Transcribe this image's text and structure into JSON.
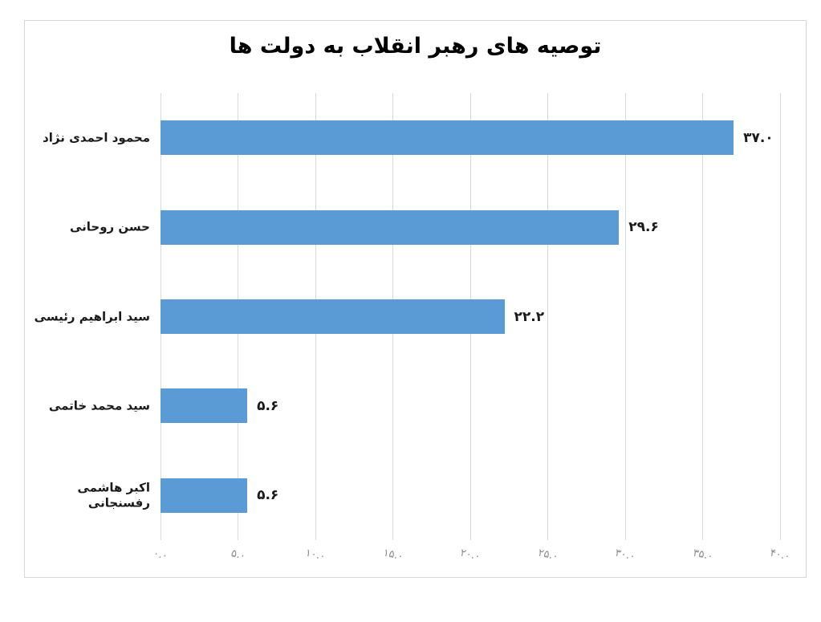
{
  "chart_data": {
    "type": "bar",
    "orientation": "horizontal",
    "title": "توصیه های رهبر انقلاب به دولت ها",
    "categories": [
      "محمود احمدی نژاد",
      "حسن روحانی",
      "سید ابراهیم رئیسی",
      "سید محمد خاتمی",
      "اکبر هاشمی رفسنجانی"
    ],
    "values": [
      37.0,
      29.6,
      22.2,
      5.6,
      5.6
    ],
    "value_labels": [
      "۳۷.۰",
      "۲۹.۶",
      "۲۲.۲",
      "۵.۶",
      "۵.۶"
    ],
    "x_ticks": [
      0,
      5,
      10,
      15,
      20,
      25,
      30,
      35,
      40
    ],
    "x_tick_labels": [
      "۰.۰",
      "۵.۰",
      "۱۰.۰",
      "۱۵.۰",
      "۲۰.۰",
      "۲۵.۰",
      "۳۰.۰",
      "۳۵.۰",
      "۴۰.۰"
    ],
    "xlim": [
      0,
      40
    ],
    "xlabel": "",
    "ylabel": "",
    "grid": true,
    "legend": false,
    "bar_color": "#5B9BD5",
    "gridline_color": "#d9d9d9",
    "tick_label_color": "#8c8c8c",
    "title_color": "#000000",
    "category_label_color": "#1a1a1a",
    "value_label_color": "#1a1a1a",
    "frame_border_color": "#d6d6d6"
  }
}
